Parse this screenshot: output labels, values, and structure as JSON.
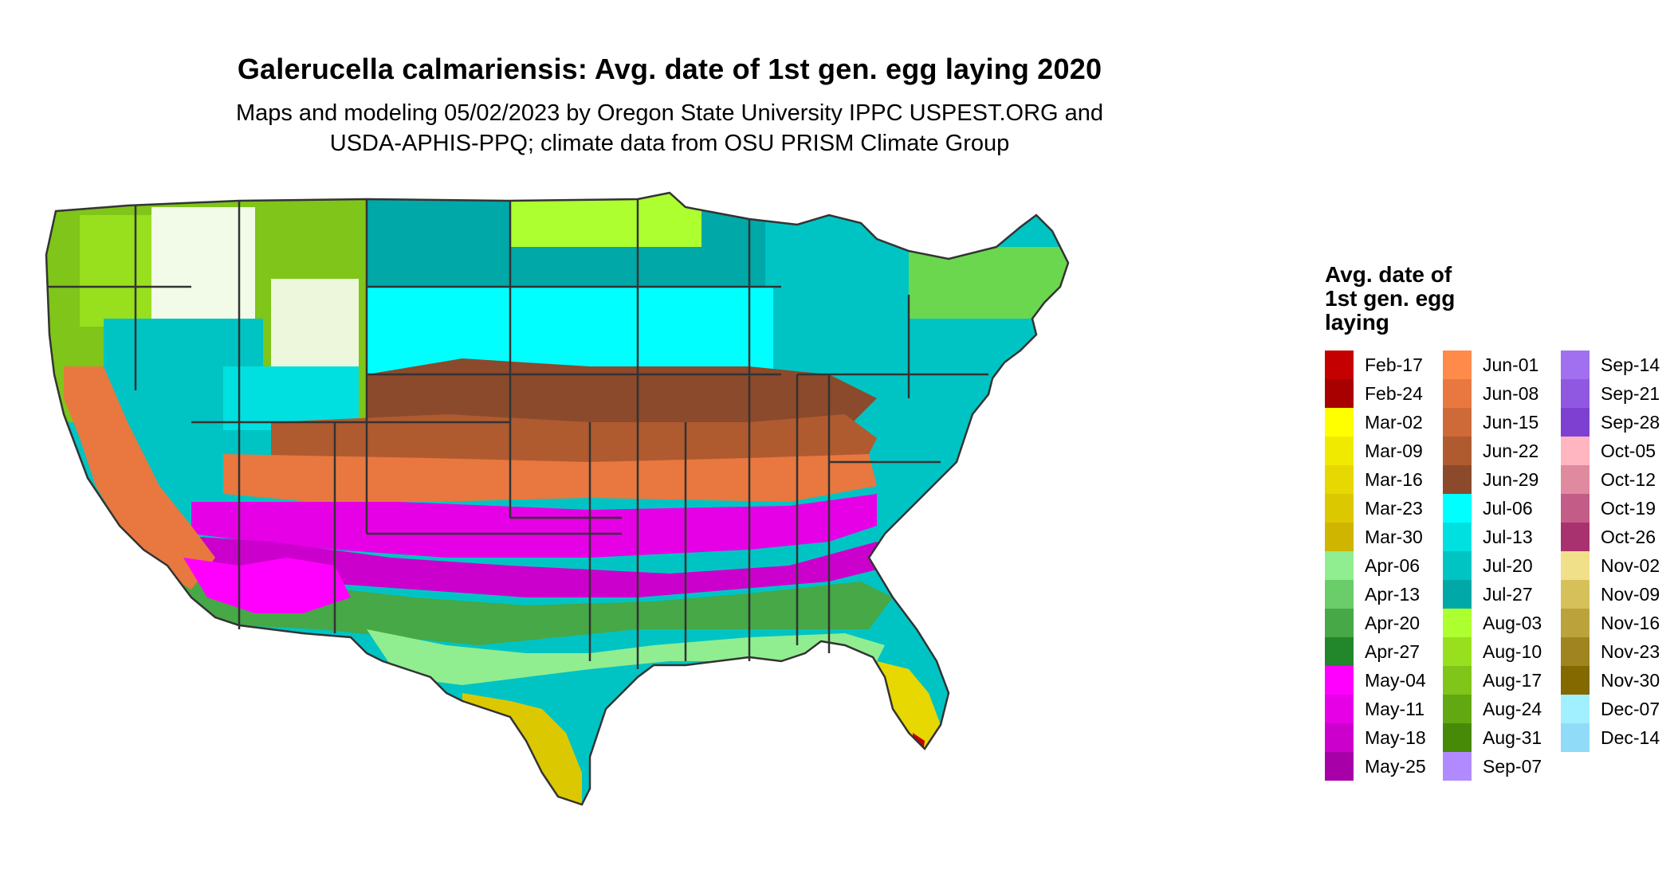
{
  "title": "Galerucella calmariensis: Avg. date of 1st gen. egg laying 2020",
  "subtitle_line1": "Maps and modeling 05/02/2023 by Oregon State University IPPC USPEST.ORG and",
  "subtitle_line2": "USDA-APHIS-PPQ; climate data from OSU PRISM Climate Group",
  "legend": {
    "title": "Avg. date of 1st gen. egg laying",
    "columns": [
      [
        {
          "label": "Feb-17",
          "color": "#c40000"
        },
        {
          "label": "Feb-24",
          "color": "#a80000"
        },
        {
          "label": "Mar-02",
          "color": "#ffff00"
        },
        {
          "label": "Mar-09",
          "color": "#f0ea00"
        },
        {
          "label": "Mar-16",
          "color": "#e6d800"
        },
        {
          "label": "Mar-23",
          "color": "#dcc800"
        },
        {
          "label": "Mar-30",
          "color": "#cfb400"
        },
        {
          "label": "Apr-06",
          "color": "#90ee90"
        },
        {
          "label": "Apr-13",
          "color": "#6acd6a"
        },
        {
          "label": "Apr-20",
          "color": "#46a846"
        },
        {
          "label": "Apr-27",
          "color": "#22862a"
        },
        {
          "label": "May-04",
          "color": "#ff00ff"
        },
        {
          "label": "May-11",
          "color": "#e600e6"
        },
        {
          "label": "May-18",
          "color": "#cc00cc"
        },
        {
          "label": "May-25",
          "color": "#a800a8"
        }
      ],
      [
        {
          "label": "Jun-01",
          "color": "#ff8a4a"
        },
        {
          "label": "Jun-08",
          "color": "#e8783f"
        },
        {
          "label": "Jun-15",
          "color": "#cd6a38"
        },
        {
          "label": "Jun-22",
          "color": "#b05a30"
        },
        {
          "label": "Jun-29",
          "color": "#8b4a2b"
        },
        {
          "label": "Jul-06",
          "color": "#00ffff"
        },
        {
          "label": "Jul-13",
          "color": "#00e0e0"
        },
        {
          "label": "Jul-20",
          "color": "#00c4c4"
        },
        {
          "label": "Jul-27",
          "color": "#00a8a8"
        },
        {
          "label": "Aug-03",
          "color": "#adff2f"
        },
        {
          "label": "Aug-10",
          "color": "#98e01e"
        },
        {
          "label": "Aug-17",
          "color": "#7fc51a"
        },
        {
          "label": "Aug-24",
          "color": "#62a812"
        },
        {
          "label": "Aug-31",
          "color": "#468a08"
        },
        {
          "label": "Sep-07",
          "color": "#b28aff"
        }
      ],
      [
        {
          "label": "Sep-14",
          "color": "#a070f0"
        },
        {
          "label": "Sep-21",
          "color": "#9058e0"
        },
        {
          "label": "Sep-28",
          "color": "#7e40d0"
        },
        {
          "label": "Oct-05",
          "color": "#ffb6c1"
        },
        {
          "label": "Oct-12",
          "color": "#e08aa0"
        },
        {
          "label": "Oct-19",
          "color": "#c45c88"
        },
        {
          "label": "Oct-26",
          "color": "#a83270"
        },
        {
          "label": "Nov-02",
          "color": "#f0e08a"
        },
        {
          "label": "Nov-09",
          "color": "#d6c05a"
        },
        {
          "label": "Nov-16",
          "color": "#bca23a"
        },
        {
          "label": "Nov-23",
          "color": "#a08420"
        },
        {
          "label": "Nov-30",
          "color": "#846800"
        },
        {
          "label": "Dec-07",
          "color": "#a0f0ff"
        },
        {
          "label": "Dec-14",
          "color": "#90dcf8"
        }
      ]
    ]
  },
  "map_colors": {
    "border": "#333333",
    "white_highland": "#ffffff"
  }
}
